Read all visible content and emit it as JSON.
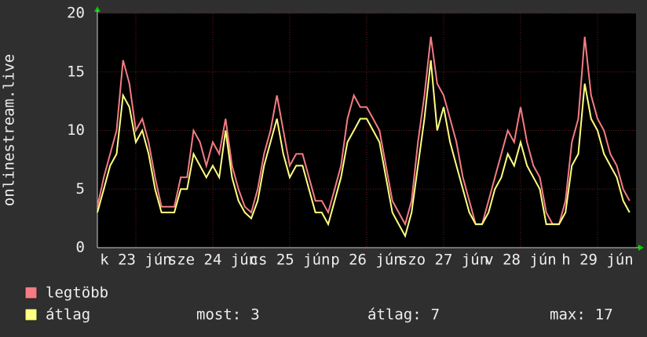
{
  "chart_data": {
    "type": "line",
    "ylabel": "onlinestream.live",
    "x": [
      0,
      2,
      4,
      6,
      8,
      10,
      12,
      14,
      16,
      18,
      20,
      22,
      24,
      26,
      28,
      30,
      32,
      34,
      36,
      38,
      40,
      42,
      44,
      46,
      48,
      50,
      52,
      54,
      56,
      58,
      60,
      62,
      64,
      66,
      68,
      70,
      72,
      74,
      76,
      78,
      80,
      82,
      84,
      86,
      88,
      90,
      92,
      94,
      96,
      98,
      100,
      102,
      104,
      106,
      108,
      110,
      112,
      114,
      116,
      118,
      120,
      122,
      124,
      126,
      128,
      130,
      132,
      134,
      136,
      138,
      140,
      142,
      144,
      146,
      148,
      150,
      152,
      154,
      156,
      158,
      160,
      162,
      164,
      166
    ],
    "series": [
      {
        "name": "legtöbb",
        "color": "#f47c84",
        "values": [
          3.5,
          6,
          8,
          10,
          16,
          14,
          10,
          11,
          9,
          6,
          3.5,
          3.5,
          3.5,
          6,
          6,
          10,
          9,
          7,
          9,
          8,
          11,
          7,
          5,
          3.5,
          3,
          5,
          8,
          10,
          13,
          10,
          7,
          8,
          8,
          6,
          4,
          4,
          3,
          5,
          7,
          11,
          13,
          12,
          12,
          11,
          10,
          7,
          4,
          3,
          2,
          4,
          9,
          13,
          18,
          14,
          13,
          11,
          9,
          6,
          4,
          2,
          2,
          4,
          6,
          8,
          10,
          9,
          12,
          9,
          7,
          6,
          3,
          2,
          2,
          4,
          9,
          11,
          18,
          13,
          11,
          10,
          8,
          7,
          5,
          4
        ]
      },
      {
        "name": "átlag",
        "color": "#ffff80",
        "values": [
          3,
          5,
          7,
          8,
          13,
          12,
          9,
          10,
          8,
          5,
          3,
          3,
          3,
          5,
          5,
          8,
          7,
          6,
          7,
          6,
          10,
          6,
          4,
          3,
          2.5,
          4,
          7,
          9,
          11,
          8,
          6,
          7,
          7,
          5,
          3,
          3,
          2,
          4,
          6,
          9,
          10,
          11,
          11,
          10,
          9,
          6,
          3,
          2,
          1,
          3,
          7,
          11,
          16,
          10,
          12,
          9,
          7,
          5,
          3,
          2,
          2,
          3,
          5,
          6,
          8,
          7,
          9,
          7,
          6,
          5,
          2,
          2,
          2,
          3,
          7,
          8,
          14,
          11,
          10,
          8,
          7,
          6,
          4,
          3
        ]
      }
    ],
    "xlim": [
      0,
      168
    ],
    "xticks": [
      {
        "value": 12,
        "label": "k 23 jún"
      },
      {
        "value": 36,
        "label": "sze 24 jún"
      },
      {
        "value": 60,
        "label": "cs 25 jún"
      },
      {
        "value": 84,
        "label": "p 26 jún"
      },
      {
        "value": 108,
        "label": "szo 27 jún"
      },
      {
        "value": 132,
        "label": "v 28 jún"
      },
      {
        "value": 156,
        "label": "h 29 jún"
      }
    ],
    "ylim": [
      0,
      20
    ],
    "yticks": [
      0,
      5,
      10,
      15,
      20
    ],
    "grid": true,
    "stats": [
      {
        "label": "most:",
        "value": 3
      },
      {
        "label": "átlag:",
        "value": 7
      },
      {
        "label": "max:",
        "value": 17
      }
    ]
  }
}
